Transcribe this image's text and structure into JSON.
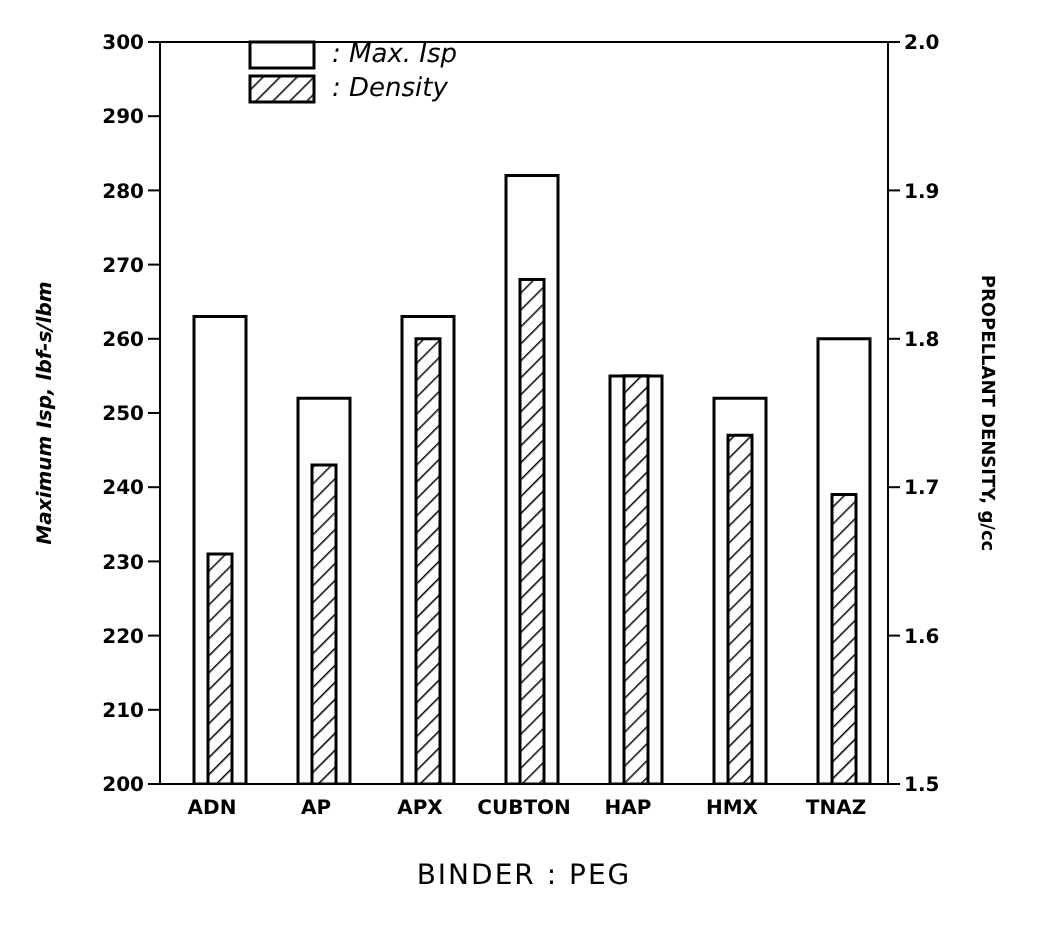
{
  "chart_data": {
    "type": "bar",
    "xlabel": "BINDER : PEG",
    "ylabel": "Maximum Isp, lbf-s/lbm",
    "y2label": "PROPELLANT DENSITY, g/cc",
    "categories": [
      "ADN",
      "AP",
      "APX",
      "CUBTON",
      "HAP",
      "HMX",
      "TNAZ"
    ],
    "series": [
      {
        "name": ": Max. Isp",
        "color": "#000000",
        "values": [
          263,
          252,
          263,
          282,
          255,
          252,
          260
        ]
      },
      {
        "name": ": Density",
        "color": "#000000",
        "axis": "y2",
        "values": [
          1.655,
          1.715,
          1.8,
          1.84,
          1.775,
          1.735,
          1.695
        ]
      }
    ],
    "ylim": [
      200,
      300
    ],
    "yticks": [
      200,
      210,
      220,
      230,
      240,
      250,
      260,
      270,
      280,
      290,
      300
    ],
    "y2lim": [
      1.5,
      2.0
    ],
    "y2ticks": [
      {
        "value": 1.5,
        "label": "1.5"
      },
      {
        "value": 1.6,
        "label": "1.6"
      },
      {
        "value": 1.7,
        "label": "1.7"
      },
      {
        "value": 1.8,
        "label": "1.8"
      },
      {
        "value": 1.9,
        "label": "1.9"
      },
      {
        "value": 2.0,
        "label": "2.0"
      }
    ],
    "grid": false,
    "legend": "top left"
  }
}
